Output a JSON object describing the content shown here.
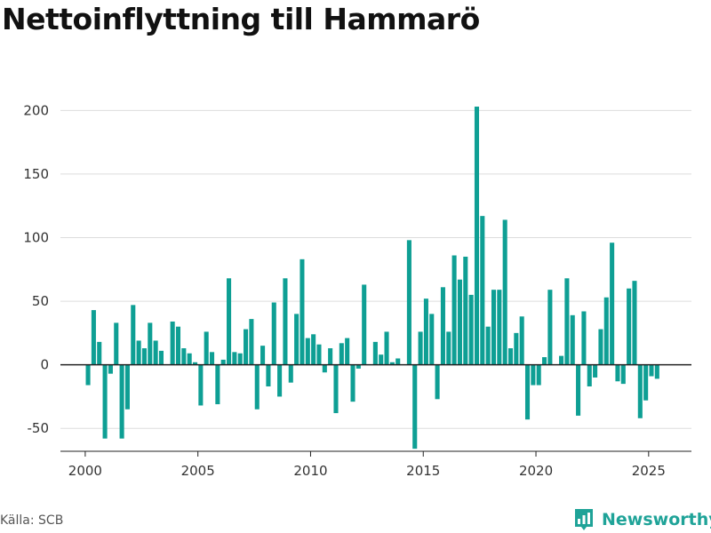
{
  "title": "Nettoinflyttning till Hammarö",
  "source": "Källa: SCB",
  "brand": {
    "name": "Newsworthy",
    "icon": "bar-chart-logo-icon"
  },
  "colors": {
    "bar": "#0e9f94",
    "brand": "#1fa398",
    "grid": "#dddddd",
    "axis": "#222222"
  },
  "chart_data": {
    "type": "bar",
    "title": "Nettoinflyttning till Hammarö",
    "xlabel": "",
    "ylabel": "",
    "ylim": [
      -68,
      210
    ],
    "xlim": [
      1998.9,
      2026.9
    ],
    "y_ticks": [
      -50,
      0,
      50,
      100,
      150,
      200
    ],
    "x_ticks": [
      2000,
      2005,
      2010,
      2015,
      2020,
      2025
    ],
    "grid": true,
    "legend": "none",
    "bar_width_years": 0.2,
    "x": [
      2000.125,
      2000.375,
      2000.625,
      2000.875,
      2001.125,
      2001.375,
      2001.625,
      2001.875,
      2002.125,
      2002.375,
      2002.625,
      2002.875,
      2003.125,
      2003.375,
      2003.625,
      2003.875,
      2004.125,
      2004.375,
      2004.625,
      2004.875,
      2005.125,
      2005.375,
      2005.625,
      2005.875,
      2006.125,
      2006.375,
      2006.625,
      2006.875,
      2007.125,
      2007.375,
      2007.625,
      2007.875,
      2008.125,
      2008.375,
      2008.625,
      2008.875,
      2009.125,
      2009.375,
      2009.625,
      2009.875,
      2010.125,
      2010.375,
      2010.625,
      2010.875,
      2011.125,
      2011.375,
      2011.625,
      2011.875,
      2012.125,
      2012.375,
      2012.625,
      2012.875,
      2013.125,
      2013.375,
      2013.625,
      2013.875,
      2014.125,
      2014.375,
      2014.625,
      2014.875,
      2015.125,
      2015.375,
      2015.625,
      2015.875,
      2016.125,
      2016.375,
      2016.625,
      2016.875,
      2017.125,
      2017.375,
      2017.625,
      2017.875,
      2018.125,
      2018.375,
      2018.625,
      2018.875,
      2019.125,
      2019.375,
      2019.625,
      2019.875,
      2020.125,
      2020.375,
      2020.625,
      2020.875,
      2021.125,
      2021.375,
      2021.625,
      2021.875,
      2022.125,
      2022.375,
      2022.625,
      2022.875,
      2023.125,
      2023.375,
      2023.625,
      2023.875,
      2024.125,
      2024.375,
      2024.625,
      2024.875,
      2025.125,
      2025.375
    ],
    "values": [
      -16,
      43,
      18,
      -58,
      -7,
      33,
      -58,
      -35,
      47,
      19,
      13,
      33,
      19,
      11,
      0,
      34,
      30,
      13,
      9,
      2,
      -32,
      26,
      10,
      -31,
      4,
      68,
      10,
      9,
      28,
      36,
      -35,
      15,
      -17,
      49,
      -25,
      68,
      -14,
      40,
      83,
      21,
      24,
      16,
      -6,
      13,
      -38,
      17,
      21,
      -29,
      -3,
      63,
      0,
      18,
      8,
      26,
      2,
      5,
      0,
      98,
      -66,
      26,
      52,
      40,
      -27,
      61,
      26,
      86,
      67,
      85,
      55,
      203,
      117,
      30,
      59,
      59,
      114,
      13,
      25,
      38,
      -43,
      -16,
      -16,
      6,
      59,
      0,
      7,
      68,
      39,
      -40,
      42,
      -17,
      -10,
      28,
      53,
      96,
      -13,
      -15,
      60,
      66,
      -42,
      -28,
      -9,
      -11
    ]
  }
}
